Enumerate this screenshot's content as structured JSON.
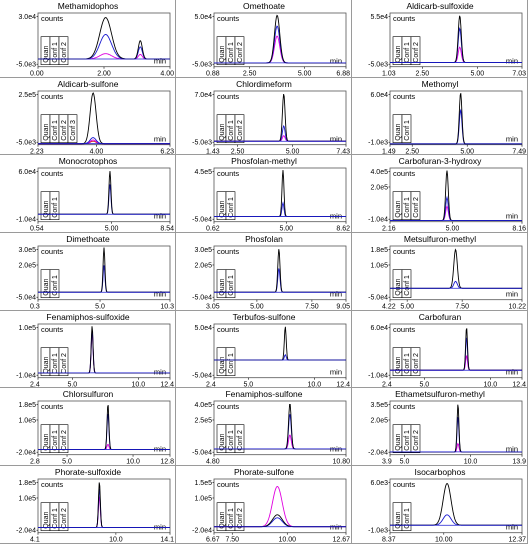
{
  "colors": {
    "quan": "#000000",
    "conf1": "#1a1ad0",
    "conf2": "#e000e0",
    "conf3": "#cc2222",
    "frame": "#9a9a9a"
  },
  "labels": {
    "counts": "counts",
    "min": "min"
  },
  "chart_data": [
    {
      "type": "line",
      "title": "Methamidophos",
      "xlim": [
        0.0,
        4.0
      ],
      "yticks": [
        "3.0e4",
        "-5.0e3"
      ],
      "ylim": [
        -5000,
        30000
      ],
      "xticks": [
        "0.00",
        "2.00",
        "4.00"
      ],
      "legend": [
        "Quan",
        "Conf 1",
        "Conf 2"
      ],
      "x_tick_values": [
        0,
        2,
        4
      ],
      "peaks": [
        {
          "center": 2.05,
          "width": 0.18,
          "heights": [
            27000,
            16000,
            3500
          ]
        },
        {
          "center": 3.1,
          "width": 0.06,
          "heights": [
            12000,
            8000,
            3000
          ]
        }
      ]
    },
    {
      "type": "line",
      "title": "Omethoate",
      "xlim": [
        0.88,
        6.88
      ],
      "yticks": [
        "5.0e4",
        "-5.0e3"
      ],
      "ylim": [
        -5000,
        65000
      ],
      "xticks": [
        "0.88",
        "2.50",
        "5.00",
        "6.88"
      ],
      "legend": [
        "Quan",
        "Conf 1",
        "Conf 2"
      ],
      "x_tick_values": [
        0.88,
        2.5,
        5,
        6.88
      ],
      "peaks": [
        {
          "center": 3.75,
          "width": 0.12,
          "heights": [
            62000,
            48000,
            35000
          ]
        }
      ]
    },
    {
      "type": "line",
      "title": "Aldicarb-sulfoxide",
      "xlim": [
        1.03,
        7.03
      ],
      "yticks": [
        "5.5e4",
        "-5.0e3"
      ],
      "ylim": [
        -5000,
        58000
      ],
      "xticks": [
        "1.03",
        "2.50",
        "5.00",
        "7.03"
      ],
      "legend": [
        "Quan",
        "Conf 1",
        "Conf 2"
      ],
      "x_tick_values": [
        1.03,
        2.5,
        5,
        7.03
      ],
      "peaks": [
        {
          "center": 4.2,
          "width": 0.07,
          "heights": [
            55000,
            40000,
            18000
          ]
        }
      ]
    },
    {
      "type": "line",
      "title": "Aldicarb-sulfone",
      "xlim": [
        2.23,
        6.23
      ],
      "yticks": [
        "2.5e5",
        "-5.0e3"
      ],
      "ylim": [
        -5000,
        260000
      ],
      "xticks": [
        "2.23",
        "4.00",
        "6.23"
      ],
      "legend": [
        "Quan",
        "Conf 1",
        "Conf 2",
        "Conf 3"
      ],
      "x_tick_values": [
        2.23,
        4,
        6.23
      ],
      "peaks": [
        {
          "center": 3.9,
          "width": 0.09,
          "heights": [
            250000,
            30000,
            18000,
            12000
          ]
        }
      ]
    },
    {
      "type": "line",
      "title": "Chlordimeform",
      "xlim": [
        1.43,
        7.43
      ],
      "yticks": [
        "7.0e4",
        "-5.0e3"
      ],
      "ylim": [
        -5000,
        72000
      ],
      "xticks": [
        "1.43",
        "2.50",
        "5.00",
        "7.43"
      ],
      "legend": [
        "Quan",
        "Conf 1",
        "Conf 2"
      ],
      "x_tick_values": [
        1.43,
        2.5,
        5,
        7.43
      ],
      "peaks": [
        {
          "center": 4.6,
          "width": 0.06,
          "heights": [
            68000,
            22000,
            8000
          ]
        }
      ]
    },
    {
      "type": "line",
      "title": "Methomyl",
      "xlim": [
        1.49,
        7.49
      ],
      "yticks": [
        "6.0e4",
        "-1.0e3"
      ],
      "ylim": [
        -1000,
        62000
      ],
      "xticks": [
        "1.49",
        "2.50",
        "5.00",
        "7.49"
      ],
      "legend": [
        "Quan",
        "Conf 1"
      ],
      "x_tick_values": [
        1.49,
        2.5,
        5,
        7.49
      ],
      "peaks": [
        {
          "center": 4.7,
          "width": 0.06,
          "heights": [
            60000,
            40000
          ]
        }
      ]
    },
    {
      "type": "line",
      "title": "Monocrotophos",
      "xlim": [
        0.54,
        8.54
      ],
      "yticks": [
        "6.0e4",
        "-1.0e4"
      ],
      "ylim": [
        -10000,
        62000
      ],
      "xticks": [
        "0.54",
        "5.00",
        "8.54"
      ],
      "legend": [
        "Quan",
        "Conf 1"
      ],
      "x_tick_values": [
        0.54,
        5,
        8.54
      ],
      "peaks": [
        {
          "center": 4.9,
          "width": 0.06,
          "heights": [
            58000,
            40000
          ]
        }
      ]
    },
    {
      "type": "line",
      "title": "Phosfolan-methyl",
      "xlim": [
        0.62,
        8.62
      ],
      "yticks": [
        "4.5e5",
        "-5.0e4"
      ],
      "ylim": [
        -50000,
        460000
      ],
      "xticks": [
        "0.62",
        "5.00",
        "8.62"
      ],
      "legend": [
        "Quan",
        "Conf 1"
      ],
      "x_tick_values": [
        0.62,
        5,
        8.62
      ],
      "peaks": [
        {
          "center": 4.8,
          "width": 0.06,
          "heights": [
            440000,
            130000
          ]
        }
      ]
    },
    {
      "type": "line",
      "title": "Carbofuran-3-hydroxy",
      "xlim": [
        2.16,
        8.16
      ],
      "yticks": [
        "4.0e5",
        "2.0e5",
        "-1.0e4"
      ],
      "ylim": [
        -10000,
        410000
      ],
      "xticks": [
        "2.16",
        "5.00",
        "8.16"
      ],
      "legend": [
        "Quan",
        "Conf 1",
        "Conf 2"
      ],
      "x_tick_values": [
        2.16,
        5,
        8.16
      ],
      "peaks": [
        {
          "center": 4.75,
          "width": 0.06,
          "heights": [
            390000,
            180000,
            110000
          ]
        }
      ]
    },
    {
      "type": "line",
      "title": "Dimethoate",
      "xlim": [
        0.3,
        10.3
      ],
      "yticks": [
        "3.0e5",
        "2.0e5",
        "-5.0e4"
      ],
      "ylim": [
        -50000,
        310000
      ],
      "xticks": [
        "0.3",
        "5.0",
        "10.3"
      ],
      "legend": [
        "Quan",
        "Conf 1"
      ],
      "x_tick_values": [
        0.3,
        5,
        10.3
      ],
      "peaks": [
        {
          "center": 5.3,
          "width": 0.07,
          "heights": [
            300000,
            180000
          ]
        }
      ]
    },
    {
      "type": "line",
      "title": "Phosfolan",
      "xlim": [
        3.05,
        9.05
      ],
      "yticks": [
        "3.0e5",
        "2.0e5",
        "-5.0e4"
      ],
      "ylim": [
        -50000,
        310000
      ],
      "xticks": [
        "3.05",
        "5.00",
        "7.50",
        "9.05"
      ],
      "legend": [
        "Quan",
        "Conf 1"
      ],
      "x_tick_values": [
        3.05,
        5,
        7.5,
        9.05
      ],
      "peaks": [
        {
          "center": 6.0,
          "width": 0.05,
          "heights": [
            290000,
            160000
          ]
        }
      ]
    },
    {
      "type": "line",
      "title": "Metsulfuron-methyl",
      "xlim": [
        4.22,
        10.22
      ],
      "yticks": [
        "1.8e5",
        "1.0e5",
        "-5.0e4"
      ],
      "ylim": [
        -50000,
        185000
      ],
      "xticks": [
        "4.22",
        "5.00",
        "7.50",
        "10.22"
      ],
      "legend": [
        "Quan",
        "Conf 1"
      ],
      "x_tick_values": [
        4.22,
        5,
        7.5,
        10.22
      ],
      "peaks": [
        {
          "center": 7.2,
          "width": 0.08,
          "heights": [
            170000,
            30000
          ]
        }
      ]
    },
    {
      "type": "line",
      "title": "Fenamiphos-sulfoxide",
      "xlim": [
        2.4,
        12.4
      ],
      "yticks": [
        "1.0e5",
        "-1.0e4"
      ],
      "ylim": [
        -10000,
        102000
      ],
      "xticks": [
        "2.4",
        "5.0",
        "10.0",
        "12.4"
      ],
      "legend": [
        "Quan",
        "Conf 1",
        "Conf 2"
      ],
      "x_tick_values": [
        2.4,
        5,
        10,
        12.4
      ],
      "peaks": [
        {
          "center": 6.5,
          "width": 0.07,
          "heights": [
            98000,
            90000,
            85000
          ]
        }
      ]
    },
    {
      "type": "line",
      "title": "Terbufos-sulfone",
      "xlim": [
        2.4,
        12.4
      ],
      "yticks": [
        "5.0e4",
        "-5.0e4"
      ],
      "ylim": [
        -50000,
        102000
      ],
      "xticks": [
        "2.4",
        "5.0",
        "10.0",
        "12.4"
      ],
      "legend": [
        "Quan",
        "Conf 1"
      ],
      "x_tick_values": [
        2.4,
        5,
        10,
        12.4
      ],
      "peaks": [
        {
          "center": 7.8,
          "width": 0.07,
          "heights": [
            95000,
            15000
          ]
        }
      ]
    },
    {
      "type": "line",
      "title": "Carbofuran",
      "xlim": [
        2.4,
        12.4
      ],
      "yticks": [
        "6.0e4",
        "-1.0e4"
      ],
      "ylim": [
        -10000,
        62000
      ],
      "xticks": [
        "2.4",
        "5.0",
        "10.0",
        "12.4"
      ],
      "legend": [
        "Quan",
        "Conf 1",
        "Conf 2"
      ],
      "x_tick_values": [
        2.4,
        5,
        10,
        12.4
      ],
      "peaks": [
        {
          "center": 8.2,
          "width": 0.07,
          "heights": [
            58000,
            45000,
            20000
          ]
        }
      ]
    },
    {
      "type": "line",
      "title": "Chlorsulfuron",
      "xlim": [
        2.8,
        12.8
      ],
      "yticks": [
        "1.8e5",
        "1.0e5",
        "-2.0e4"
      ],
      "ylim": [
        -20000,
        185000
      ],
      "xticks": [
        "2.8",
        "5.0",
        "10.0",
        "12.8"
      ],
      "legend": [
        "Quan",
        "Conf 1",
        "Conf 2"
      ],
      "x_tick_values": [
        2.8,
        5,
        10,
        12.8
      ],
      "peaks": [
        {
          "center": 8.1,
          "width": 0.07,
          "heights": [
            175000,
            140000,
            20000
          ]
        }
      ]
    },
    {
      "type": "line",
      "title": "Fenamiphos-sulfone",
      "xlim": [
        4.8,
        10.8
      ],
      "yticks": [
        "4.0e5",
        "2.5e5",
        "-5.0e4"
      ],
      "ylim": [
        -50000,
        410000
      ],
      "xticks": [
        "4.80",
        "10.80"
      ],
      "legend": [
        "Quan",
        "Conf 1",
        "Conf 2"
      ],
      "x_tick_values": [
        4.8,
        10.8
      ],
      "peaks": [
        {
          "center": 8.25,
          "width": 0.06,
          "heights": [
            390000,
            300000,
            120000
          ]
        }
      ]
    },
    {
      "type": "line",
      "title": "Ethametsulfuron-methyl",
      "xlim": [
        3.9,
        13.9
      ],
      "yticks": [
        "3.5e5",
        "2.0e5",
        "-2.0e4"
      ],
      "ylim": [
        -20000,
        360000
      ],
      "xticks": [
        "3.9",
        "5.0",
        "10.0",
        "13.9"
      ],
      "legend": [
        "Quan",
        "Conf 1",
        "Conf 2"
      ],
      "x_tick_values": [
        3.9,
        5,
        10,
        13.9
      ],
      "peaks": [
        {
          "center": 9.05,
          "width": 0.07,
          "heights": [
            340000,
            250000,
            60000
          ]
        }
      ]
    },
    {
      "type": "line",
      "title": "Phorate-sulfoxide",
      "xlim": [
        4.1,
        14.1
      ],
      "yticks": [
        "1.8e5",
        "1.0e5",
        "-2.0e4"
      ],
      "ylim": [
        -20000,
        185000
      ],
      "xticks": [
        "4.1",
        "10.0",
        "14.1"
      ],
      "legend": [
        "Quan",
        "Conf 1",
        "Conf 2"
      ],
      "x_tick_values": [
        4.1,
        10,
        14.1
      ],
      "peaks": [
        {
          "center": 8.75,
          "width": 0.07,
          "heights": [
            175000,
            150000,
            120000
          ]
        }
      ]
    },
    {
      "type": "line",
      "title": "Phorate-sulfone",
      "xlim": [
        6.67,
        12.67
      ],
      "yticks": [
        "1.5e5",
        "1.0e5",
        "-2.0e4"
      ],
      "ylim": [
        -20000,
        160000
      ],
      "xticks": [
        "6.67",
        "7.50",
        "10.00",
        "12.67"
      ],
      "legend": [
        "Quan",
        "Conf 1",
        "Conf 2"
      ],
      "x_tick_values": [
        6.67,
        7.5,
        10,
        12.67
      ],
      "peaks": [
        {
          "center": 9.55,
          "width": 0.22,
          "heights": [
            40000,
            30000,
            135000
          ]
        }
      ]
    },
    {
      "type": "line",
      "title": "Isocarbophos",
      "xlim": [
        8.37,
        12.37
      ],
      "yticks": [
        "6.0e3",
        "-1.0e3"
      ],
      "ylim": [
        -1000,
        6200
      ],
      "xticks": [
        "8.37",
        "10.00",
        "12.37"
      ],
      "legend": [
        "Quan",
        "Conf 1"
      ],
      "x_tick_values": [
        8.37,
        10,
        12.37
      ],
      "peaks": [
        {
          "center": 10.1,
          "width": 0.12,
          "heights": [
            5600,
            1400
          ]
        }
      ]
    }
  ]
}
